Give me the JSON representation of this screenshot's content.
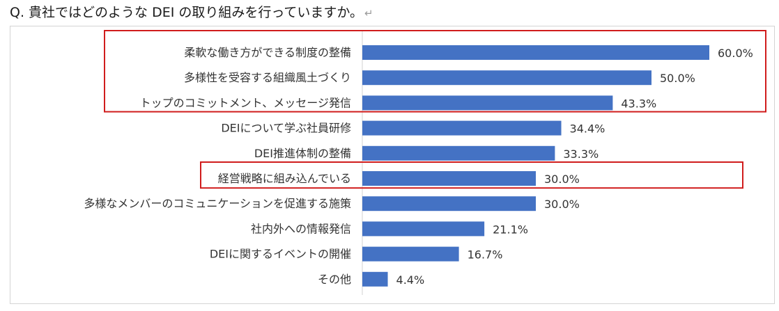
{
  "question": "Q. 貴社ではどのような DEI の取り組みを行っていますか。",
  "return_mark": "↵",
  "colors": {
    "bar": "#4472c4",
    "highlight": "#d01c1c"
  },
  "chart_data": {
    "type": "bar",
    "orientation": "horizontal",
    "title": "Q. 貴社ではどのような DEI の取り組みを行っていますか。",
    "categories": [
      "柔軟な働き方ができる制度の整備",
      "多様性を受容する組織風土づくり",
      "トップのコミットメント、メッセージ発信",
      "DEIについて学ぶ社員研修",
      "DEI推進体制の整備",
      "経営戦略に組み込んでいる",
      "多様なメンバーのコミュニケーションを促進する施策",
      "社内外への情報発信",
      "DEIに関するイベントの開催",
      "その他"
    ],
    "values": [
      60.0,
      50.0,
      43.3,
      34.4,
      33.3,
      30.0,
      30.0,
      21.1,
      16.7,
      4.4
    ],
    "labels": [
      "60.0%",
      "50.0%",
      "43.3%",
      "34.4%",
      "33.3%",
      "30.0%",
      "30.0%",
      "21.1%",
      "16.7%",
      "4.4%"
    ],
    "xlim": [
      0,
      60
    ],
    "unit": "%",
    "highlight_groups": [
      [
        0,
        1,
        2
      ],
      [
        5
      ]
    ]
  }
}
